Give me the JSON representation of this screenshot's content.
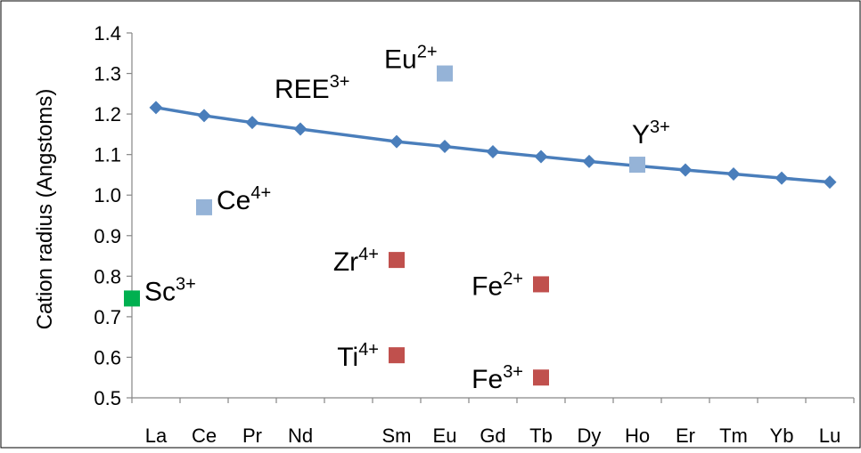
{
  "chart_data": {
    "type": "scatter",
    "ylabel": "Cation radius (Angstoms)",
    "xlabel": "",
    "ylim": [
      0.5,
      1.4
    ],
    "y_ticks": [
      "0.5",
      "0.6",
      "0.7",
      "0.8",
      "0.9",
      "1.0",
      "1.1",
      "1.2",
      "1.3",
      "1.4"
    ],
    "x_ticks": [
      "La",
      "Ce",
      "Pr",
      "Nd",
      "",
      "Sm",
      "Eu",
      "Gd",
      "Tb",
      "Dy",
      "Ho",
      "Er",
      "Tm",
      "Yb",
      "Lu"
    ],
    "grid": false,
    "legend": "none",
    "series": [
      {
        "label": {
          "base": "REE",
          "sup": "3+"
        },
        "kind": "line-diamond",
        "color": "#4a7ebb",
        "points": [
          {
            "x": "La",
            "y": 1.216
          },
          {
            "x": "Ce",
            "y": 1.196
          },
          {
            "x": "Pr",
            "y": 1.179
          },
          {
            "x": "Nd",
            "y": 1.163
          },
          {
            "x": "Sm",
            "y": 1.132
          },
          {
            "x": "Eu",
            "y": 1.12
          },
          {
            "x": "Gd",
            "y": 1.107
          },
          {
            "x": "Tb",
            "y": 1.095
          },
          {
            "x": "Dy",
            "y": 1.083
          },
          {
            "x": "Ho",
            "y": 1.072
          },
          {
            "x": "Er",
            "y": 1.062
          },
          {
            "x": "Tm",
            "y": 1.052
          },
          {
            "x": "Yb",
            "y": 1.042
          },
          {
            "x": "Lu",
            "y": 1.032
          }
        ]
      }
    ],
    "points": [
      {
        "name": "eu2",
        "base": "Eu",
        "sup": "2+",
        "x": "Eu",
        "y": 1.3,
        "color": "#95b3d7",
        "label_pos": "above-left"
      },
      {
        "name": "ce4",
        "base": "Ce",
        "sup": "4+",
        "x": "Ce",
        "y": 0.97,
        "color": "#95b3d7",
        "label_pos": "right"
      },
      {
        "name": "y3",
        "base": "Y",
        "sup": "3+",
        "x": "Ho",
        "y": 1.075,
        "color": "#95b3d7",
        "label_pos": "above"
      },
      {
        "name": "sc3",
        "base": "Sc",
        "sup": "3+",
        "x": "axis",
        "y": 0.745,
        "color": "#00b050",
        "label_pos": "right"
      },
      {
        "name": "zr4",
        "base": "Zr",
        "sup": "4+",
        "x": "Sm",
        "y": 0.84,
        "color": "#c0504d",
        "label_pos": "left"
      },
      {
        "name": "ti4",
        "base": "Ti",
        "sup": "4+",
        "x": "Sm",
        "y": 0.605,
        "color": "#c0504d",
        "label_pos": "left"
      },
      {
        "name": "fe2",
        "base": "Fe",
        "sup": "2+",
        "x": "Tb",
        "y": 0.78,
        "color": "#c0504d",
        "label_pos": "left"
      },
      {
        "name": "fe3",
        "base": "Fe",
        "sup": "3+",
        "x": "Tb",
        "y": 0.55,
        "color": "#c0504d",
        "label_pos": "left"
      }
    ]
  }
}
